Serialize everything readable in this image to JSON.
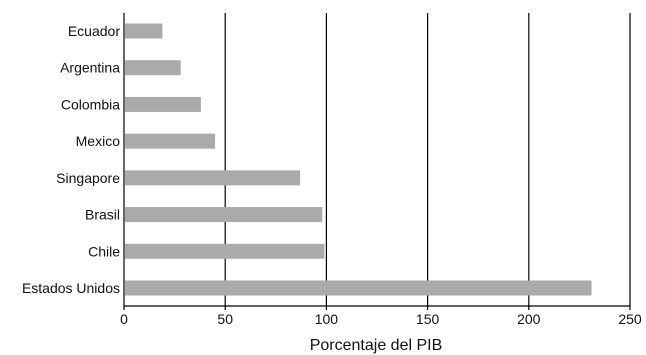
{
  "chart_data": {
    "type": "bar",
    "orientation": "horizontal",
    "title": "",
    "xlabel": "Porcentaje del PIB",
    "ylabel": "",
    "xlim": [
      0,
      250
    ],
    "xticks": [
      0,
      50,
      100,
      150,
      200,
      250
    ],
    "xtick_labels": [
      "0",
      "50",
      "100",
      "150",
      "200",
      "250"
    ],
    "grid": "vertical lines at x ticks",
    "legend": "none",
    "categories": [
      "Ecuador",
      "Argentina",
      "Colombia",
      "Mexico",
      "Singapore",
      "Brasil",
      "Chile",
      "Estados Unidos"
    ],
    "values": [
      19,
      28,
      38,
      45,
      87,
      98,
      99,
      231
    ],
    "colors": {
      "bar": "#aaaaaa",
      "axis": "#000000",
      "grid": "#000000"
    }
  }
}
